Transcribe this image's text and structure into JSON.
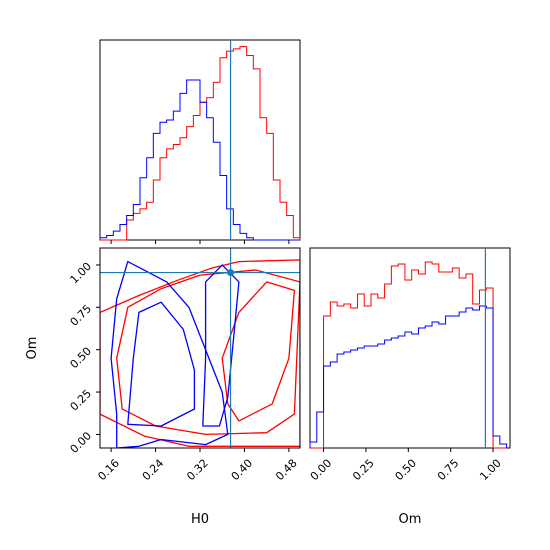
{
  "chart_data": {
    "type": "corner",
    "parameters": [
      "H0",
      "Om"
    ],
    "truths": {
      "H0": 0.375,
      "Om": 0.955
    },
    "colors": {
      "red": "#ff0000",
      "blue": "#0000ff",
      "truth": "#1f77b4"
    },
    "panels": [
      {
        "name": "H0 marginal histogram",
        "type": "histogram",
        "xlim": [
          0.14,
          0.5
        ],
        "xticks": [
          0.16,
          0.24,
          0.32,
          0.4,
          0.48
        ],
        "bin_edges": [
          0.14,
          0.152,
          0.164,
          0.176,
          0.188,
          0.2,
          0.212,
          0.224,
          0.236,
          0.248,
          0.26,
          0.272,
          0.284,
          0.296,
          0.308,
          0.32,
          0.332,
          0.344,
          0.356,
          0.368,
          0.38,
          0.392,
          0.404,
          0.416,
          0.428,
          0.44,
          0.452,
          0.464,
          0.476,
          0.488,
          0.5
        ],
        "series": [
          {
            "color": "red",
            "values": [
              0,
              0,
              0,
              0,
              0.09,
              0.12,
              0.14,
              0.17,
              0.27,
              0.37,
              0.41,
              0.43,
              0.46,
              0.51,
              0.56,
              0.62,
              0.64,
              0.71,
              0.82,
              0.85,
              0.86,
              0.87,
              0.83,
              0.77,
              0.55,
              0.48,
              0.27,
              0.17,
              0.11,
              0.01
            ]
          },
          {
            "color": "blue",
            "values": [
              0.01,
              0.02,
              0.04,
              0.07,
              0.11,
              0.16,
              0.28,
              0.37,
              0.48,
              0.53,
              0.54,
              0.58,
              0.66,
              0.72,
              0.72,
              0.62,
              0.55,
              0.44,
              0.29,
              0.14,
              0.07,
              0.03,
              0.01,
              0,
              0,
              0,
              0,
              0,
              0,
              0
            ]
          }
        ]
      },
      {
        "name": "H0 vs Om contours",
        "type": "contour",
        "xlabel": "H0",
        "ylabel": "Om",
        "xlim": [
          0.14,
          0.5
        ],
        "ylim": [
          -0.08,
          1.1
        ],
        "xticks": [
          0.16,
          0.24,
          0.32,
          0.4,
          0.48
        ],
        "yticks": [
          0.0,
          0.25,
          0.5,
          0.75,
          1.0
        ],
        "ytick_labels": [
          "0.00",
          "0.25",
          "0.50",
          "0.75",
          "1.00"
        ],
        "series": [
          {
            "color": "red",
            "levels": [
              [
                [
                  0.3,
                  -0.07
                ],
                [
                  0.5,
                  -0.07
                ],
                [
                  0.5,
                  1.03
                ],
                [
                  0.39,
                  1.02
                ],
                [
                  0.34,
                  0.98
                ],
                [
                  0.28,
                  0.91
                ],
                [
                  0.21,
                  0.82
                ],
                [
                  0.14,
                  0.72
                ],
                [
                  0.14,
                  0.12
                ],
                [
                  0.22,
                  -0.01
                ],
                [
                  0.3,
                  -0.07
                ]
              ],
              [
                [
                  0.33,
                  0.0
                ],
                [
                  0.44,
                  0.01
                ],
                [
                  0.49,
                  0.12
                ],
                [
                  0.5,
                  0.9
                ],
                [
                  0.42,
                  0.97
                ],
                [
                  0.32,
                  0.94
                ],
                [
                  0.25,
                  0.86
                ],
                [
                  0.19,
                  0.75
                ],
                [
                  0.17,
                  0.45
                ],
                [
                  0.18,
                  0.15
                ],
                [
                  0.24,
                  0.05
                ],
                [
                  0.33,
                  0.0
                ]
              ],
              [
                [
                  0.39,
                  0.08
                ],
                [
                  0.45,
                  0.18
                ],
                [
                  0.48,
                  0.45
                ],
                [
                  0.49,
                  0.85
                ],
                [
                  0.44,
                  0.9
                ],
                [
                  0.39,
                  0.72
                ],
                [
                  0.36,
                  0.45
                ],
                [
                  0.37,
                  0.18
                ],
                [
                  0.39,
                  0.08
                ]
              ]
            ]
          },
          {
            "color": "blue",
            "levels": [
              [
                [
                  0.17,
                  -0.08
                ],
                [
                  0.17,
                  0.12
                ],
                [
                  0.16,
                  0.45
                ],
                [
                  0.17,
                  0.8
                ],
                [
                  0.19,
                  1.02
                ],
                [
                  0.26,
                  0.9
                ],
                [
                  0.3,
                  0.75
                ],
                [
                  0.33,
                  0.5
                ],
                [
                  0.36,
                  0.25
                ],
                [
                  0.37,
                  0.0
                ],
                [
                  0.33,
                  -0.06
                ],
                [
                  0.25,
                  -0.03
                ],
                [
                  0.21,
                  -0.07
                ],
                [
                  0.17,
                  -0.08
                ]
              ],
              [
                [
                  0.19,
                  0.06
                ],
                [
                  0.2,
                  0.45
                ],
                [
                  0.21,
                  0.72
                ],
                [
                  0.25,
                  0.78
                ],
                [
                  0.29,
                  0.62
                ],
                [
                  0.31,
                  0.38
                ],
                [
                  0.31,
                  0.15
                ],
                [
                  0.25,
                  0.05
                ],
                [
                  0.19,
                  0.06
                ]
              ],
              [
                [
                  0.325,
                  0.05
                ],
                [
                  0.33,
                  0.45
                ],
                [
                  0.33,
                  0.9
                ],
                [
                  0.36,
                  1.0
                ],
                [
                  0.39,
                  0.9
                ],
                [
                  0.38,
                  0.55
                ],
                [
                  0.37,
                  0.22
                ],
                [
                  0.355,
                  0.05
                ],
                [
                  0.325,
                  0.05
                ]
              ]
            ]
          }
        ]
      },
      {
        "name": "Om marginal histogram",
        "type": "histogram",
        "xlabel": "Om",
        "xlim": [
          -0.08,
          1.1
        ],
        "xticks": [
          0.0,
          0.25,
          0.5,
          0.75,
          1.0
        ],
        "xtick_labels": [
          "0.00",
          "0.25",
          "0.50",
          "0.75",
          "1.00"
        ],
        "bin_edges": [
          -0.08,
          -0.04,
          0.0,
          0.04,
          0.08,
          0.12,
          0.16,
          0.2,
          0.24,
          0.28,
          0.32,
          0.36,
          0.4,
          0.44,
          0.48,
          0.52,
          0.56,
          0.6,
          0.64,
          0.68,
          0.72,
          0.76,
          0.8,
          0.84,
          0.88,
          0.92,
          0.96,
          1.0,
          1.04,
          1.08
        ],
        "series": [
          {
            "color": "red",
            "values": [
              0,
              0,
              0.66,
              0.73,
              0.71,
              0.72,
              0.7,
              0.77,
              0.71,
              0.77,
              0.75,
              0.82,
              0.91,
              0.92,
              0.84,
              0.89,
              0.87,
              0.93,
              0.92,
              0.88,
              0.88,
              0.9,
              0.85,
              0.87,
              0.72,
              0.79,
              0.8,
              0,
              0
            ]
          },
          {
            "color": "blue",
            "values": [
              0.03,
              0.18,
              0.41,
              0.43,
              0.47,
              0.48,
              0.49,
              0.5,
              0.51,
              0.51,
              0.52,
              0.54,
              0.55,
              0.56,
              0.58,
              0.57,
              0.6,
              0.61,
              0.63,
              0.62,
              0.66,
              0.66,
              0.68,
              0.7,
              0.69,
              0.71,
              0.7,
              0.06,
              0.02
            ]
          }
        ]
      }
    ]
  }
}
